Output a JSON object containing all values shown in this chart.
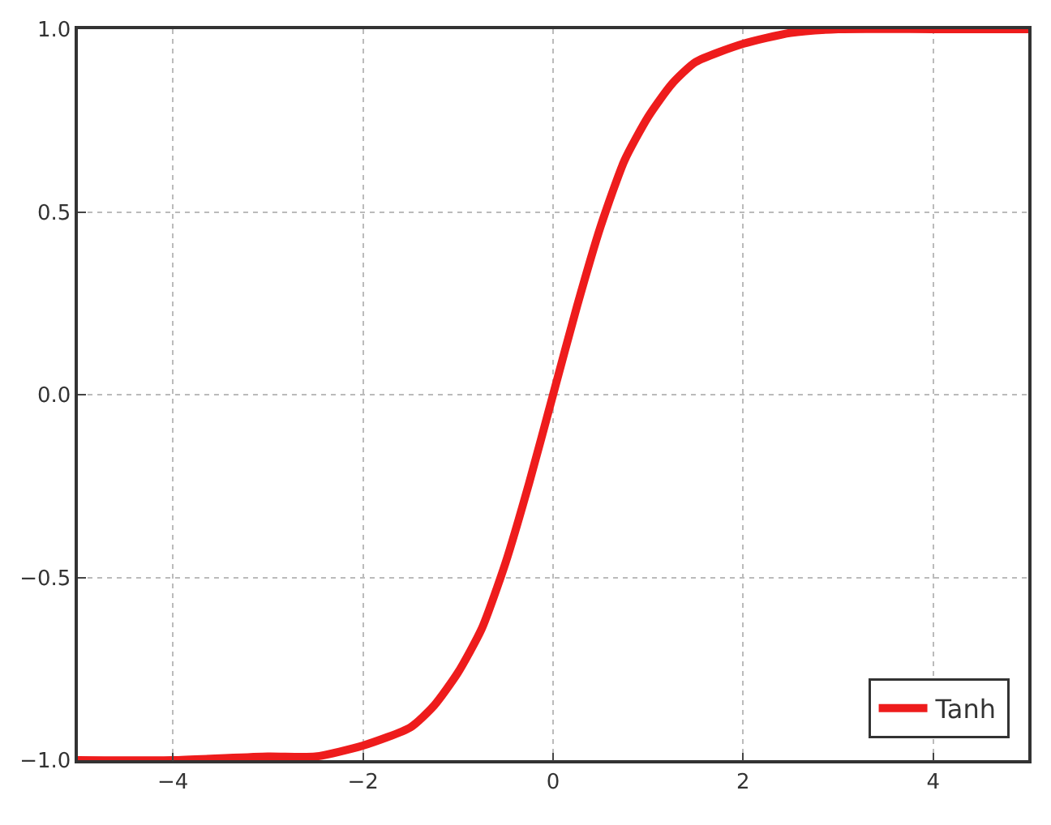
{
  "chart_data": {
    "type": "line",
    "x": [
      -5,
      -4,
      -3,
      -2.5,
      -2,
      -1.5,
      -1.25,
      -1,
      -0.75,
      -0.5,
      -0.25,
      0,
      0.25,
      0.5,
      0.75,
      1,
      1.25,
      1.5,
      2,
      2.5,
      3,
      4,
      5
    ],
    "series": [
      {
        "name": "Tanh",
        "color": "#ee1c1c",
        "values": [
          -1.0,
          -1.0,
          -0.99,
          -0.99,
          -0.96,
          -0.91,
          -0.85,
          -0.76,
          -0.64,
          -0.46,
          -0.24,
          0,
          0.24,
          0.46,
          0.64,
          0.76,
          0.85,
          0.91,
          0.96,
          0.99,
          1.0,
          1.0,
          1.0
        ]
      }
    ],
    "xlim": [
      -5,
      5
    ],
    "xticks": [
      {
        "value": -4,
        "label": "−4"
      },
      {
        "value": -2,
        "label": "−2"
      },
      0,
      2,
      4
    ],
    "ylim": [
      -1,
      1
    ],
    "yticks": [
      {
        "value": -1,
        "label": "−1.0"
      },
      {
        "value": -0.5,
        "label": "−0.5"
      },
      {
        "value": 0,
        "label": "0.0"
      },
      {
        "value": 0.5,
        "label": "0.5"
      },
      {
        "value": 1,
        "label": "1.0"
      }
    ],
    "grid": true,
    "legend": "bottom right",
    "line_style": "solid",
    "marker": "none"
  }
}
